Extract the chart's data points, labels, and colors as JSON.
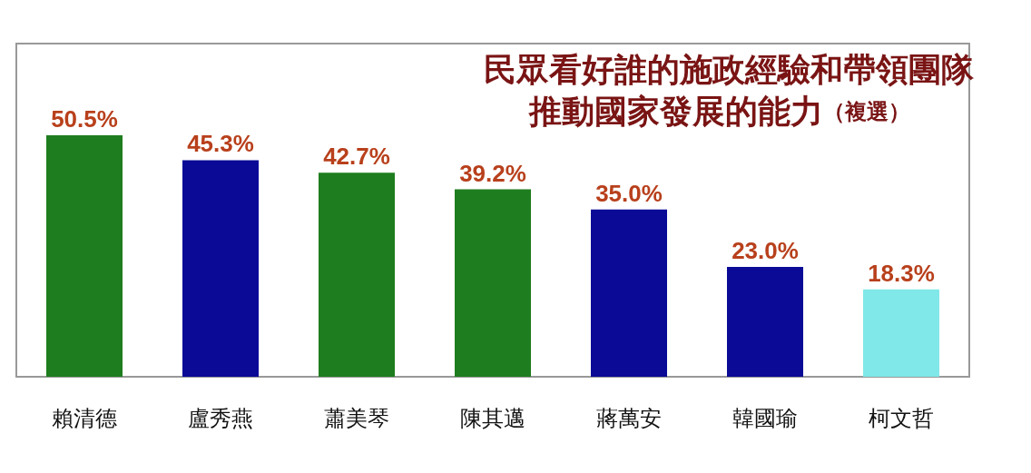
{
  "chart_data": {
    "type": "bar",
    "title": "民眾看好誰的施政經驗和帶領團隊推動國家發展的能力",
    "subtitle": "（複選）",
    "categories": [
      "賴清德",
      "盧秀燕",
      "蕭美琴",
      "陳其邁",
      "蔣萬安",
      "韓國瑜",
      "柯文哲"
    ],
    "values": [
      50.5,
      45.3,
      42.7,
      39.2,
      35.0,
      23.0,
      18.3
    ],
    "colors": [
      "#1e7d1e",
      "#0a0a96",
      "#1e7d1e",
      "#1e7d1e",
      "#0a0a96",
      "#0a0a96",
      "#80e8e8"
    ],
    "value_labels": [
      "50.5%",
      "45.3%",
      "42.7%",
      "39.2%",
      "35.0%",
      "23.0%",
      "18.3%"
    ]
  }
}
